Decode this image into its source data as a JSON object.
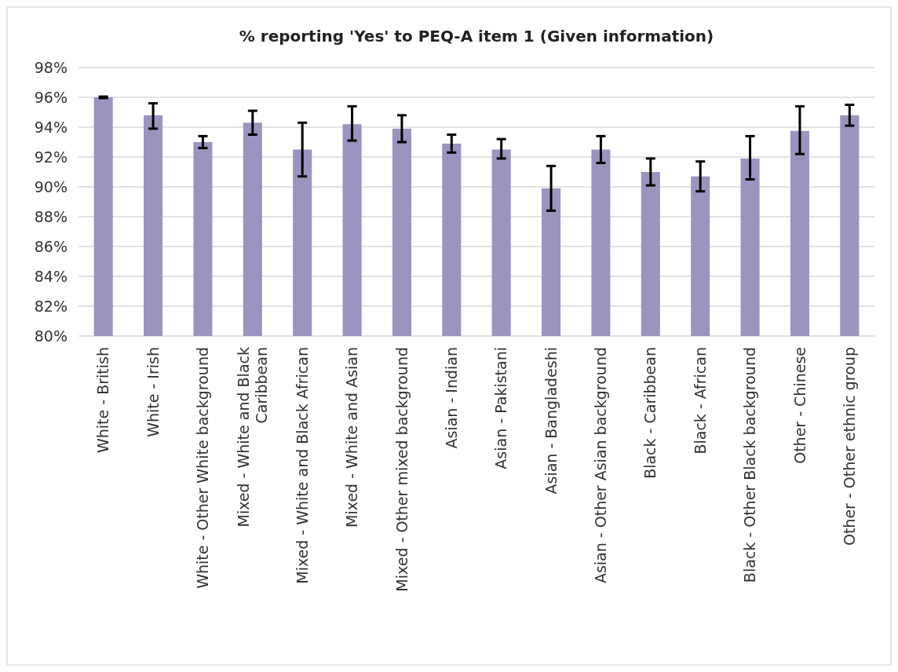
{
  "chart_data": {
    "type": "bar",
    "title": "% reporting 'Yes' to PEQ-A item 1 (Given information)",
    "categories": [
      "White - British",
      "White - Irish",
      "White - Other White background",
      "Mixed - White and Black Caribbean",
      "Mixed - White and Black African",
      "Mixed - White and Asian",
      "Mixed - Other mixed background",
      "Asian - Indian",
      "Asian - Pakistani",
      "Asian - Bangladeshi",
      "Asian - Other Asian background",
      "Black - Caribbean",
      "Black - African",
      "Black - Other Black background",
      "Other - Chinese",
      "Other - Other ethnic group"
    ],
    "values": [
      96.0,
      94.8,
      93.0,
      94.3,
      92.5,
      94.2,
      93.9,
      92.9,
      92.5,
      89.9,
      92.5,
      91.0,
      90.7,
      91.9,
      93.75,
      94.8
    ],
    "errors": [
      [
        95.95,
        96.05
      ],
      [
        93.9,
        95.6
      ],
      [
        92.6,
        93.4
      ],
      [
        93.5,
        95.1
      ],
      [
        90.7,
        94.3
      ],
      [
        93.1,
        95.4
      ],
      [
        93.0,
        94.8
      ],
      [
        92.3,
        93.5
      ],
      [
        91.9,
        93.2
      ],
      [
        88.4,
        91.4
      ],
      [
        91.6,
        93.4
      ],
      [
        90.1,
        91.9
      ],
      [
        89.7,
        91.7
      ],
      [
        90.5,
        93.4
      ],
      [
        92.2,
        95.4
      ],
      [
        94.1,
        95.5
      ]
    ],
    "color": "#9b94bf",
    "ylim": [
      80,
      98
    ],
    "yticks": [
      {
        "value": 80,
        "label": "80%"
      },
      {
        "value": 82,
        "label": "82%"
      },
      {
        "value": 84,
        "label": "84%"
      },
      {
        "value": 86,
        "label": "86%"
      },
      {
        "value": 88,
        "label": "88%"
      },
      {
        "value": 90,
        "label": "90%"
      },
      {
        "value": 92,
        "label": "92%"
      },
      {
        "value": 94,
        "label": "94%"
      },
      {
        "value": 96,
        "label": "96%"
      },
      {
        "value": 98,
        "label": "98%"
      }
    ],
    "grid": "y"
  }
}
